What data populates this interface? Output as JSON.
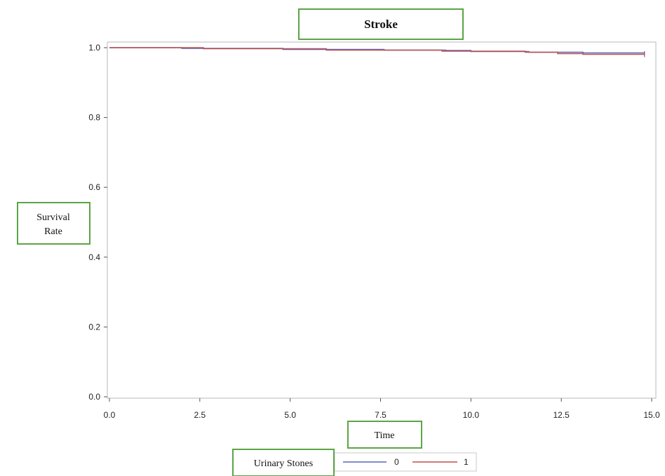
{
  "chart_data": {
    "type": "line",
    "title": "Stroke",
    "xlabel": "Time",
    "ylabel_lines": [
      "Survival",
      "Rate"
    ],
    "xlim": [
      0,
      15
    ],
    "ylim": [
      0,
      1
    ],
    "x_ticks": [
      "0.0",
      "2.5",
      "5.0",
      "7.5",
      "10.0",
      "12.5",
      "15.0"
    ],
    "y_ticks": [
      "0.0",
      "0.2",
      "0.4",
      "0.6",
      "0.8",
      "1.0"
    ],
    "grid": false,
    "legend_title": "Urinary Stones",
    "legend_position": "bottom",
    "series": [
      {
        "name": "0",
        "color": "#5a66b8",
        "step": true,
        "x": [
          0,
          2.0,
          4.8,
          7.6,
          9.3,
          10.0,
          11.6,
          13.1,
          14.8
        ],
        "y": [
          1.0,
          0.998,
          0.995,
          0.993,
          0.992,
          0.989,
          0.987,
          0.985,
          0.984
        ]
      },
      {
        "name": "1",
        "color": "#c0504d",
        "step": true,
        "x": [
          0,
          2.6,
          6.0,
          9.2,
          11.5,
          12.4,
          13.1,
          14.8
        ],
        "y": [
          1.0,
          0.997,
          0.993,
          0.99,
          0.987,
          0.983,
          0.981,
          0.979
        ]
      }
    ]
  },
  "annotation_color": "#5aa545"
}
